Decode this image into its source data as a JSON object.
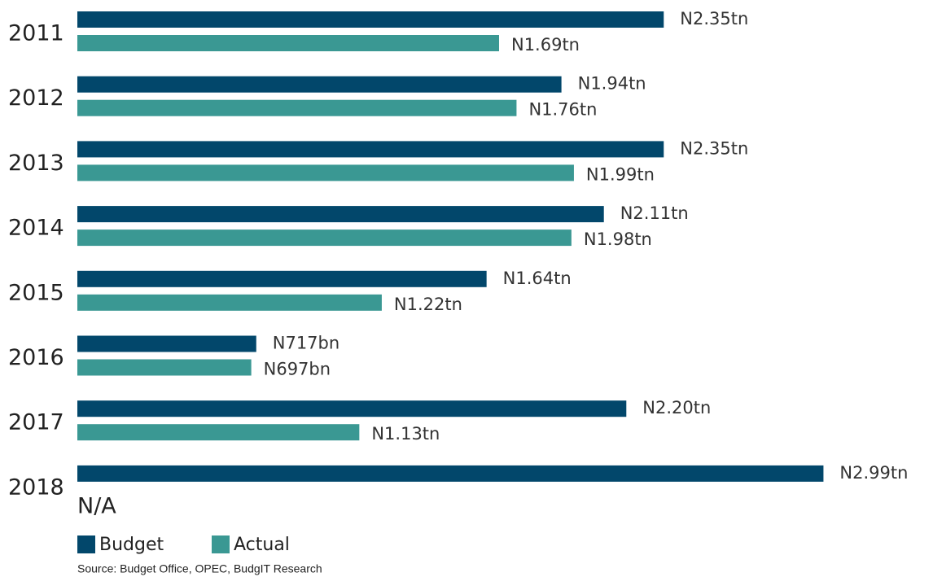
{
  "chart_data": {
    "type": "bar",
    "orientation": "horizontal",
    "categories": [
      "2011",
      "2012",
      "2013",
      "2014",
      "2015",
      "2016",
      "2017",
      "2018"
    ],
    "series": [
      {
        "name": "Budget",
        "color": "#02476b",
        "values": [
          2.35,
          1.94,
          2.35,
          2.11,
          1.64,
          0.717,
          2.2,
          2.99
        ],
        "value_labels": [
          "N2.35tn",
          "N1.94tn",
          "N2.35tn",
          "N2.11tn",
          "N1.64tn",
          "N717bn",
          "N2.20tn",
          "N2.99tn"
        ]
      },
      {
        "name": "Actual",
        "color": "#3a9893",
        "values": [
          1.69,
          1.76,
          1.99,
          1.98,
          1.22,
          0.697,
          1.13,
          null
        ],
        "value_labels": [
          "N1.69tn",
          "N1.76tn",
          "N1.99tn",
          "N1.98tn",
          "N1.22tn",
          "N697bn",
          "N1.13tn",
          "N/A"
        ]
      }
    ],
    "legend": "bottom-left",
    "source": "Source: Budget Office, OPEC, BudgIT Research"
  }
}
